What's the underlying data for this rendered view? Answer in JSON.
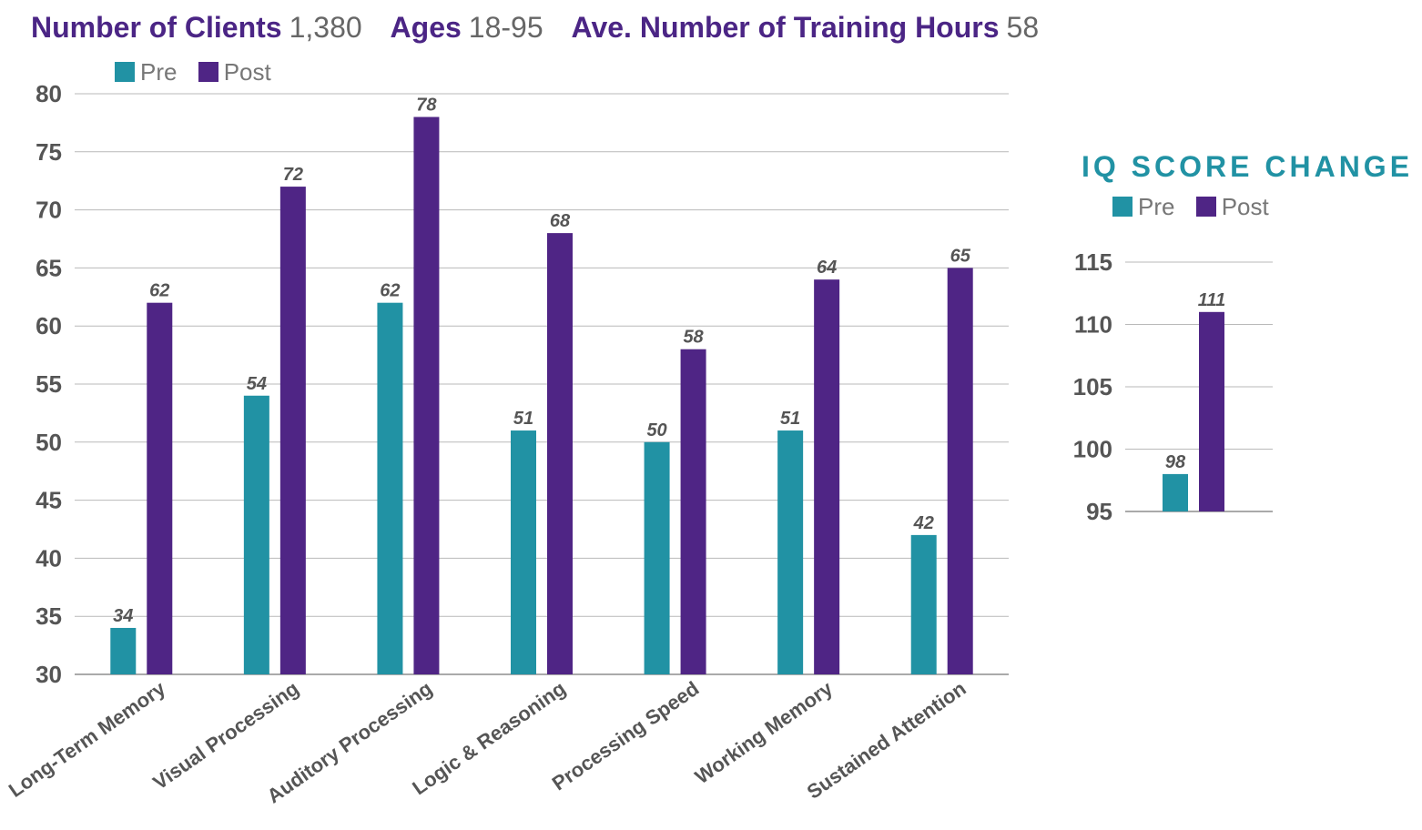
{
  "stats": [
    {
      "label": "Number of Clients",
      "value": "1,380"
    },
    {
      "label": "Ages",
      "value": "18-95"
    },
    {
      "label": "Ave. Number of Training Hours",
      "value": "58"
    }
  ],
  "colors": {
    "pre": "#2192a4",
    "post": "#4f2585",
    "grid": "#b9b9b9",
    "axis": "#555555"
  },
  "chart_data": [
    {
      "type": "bar",
      "title": "",
      "legend": [
        "Pre",
        "Post"
      ],
      "legend_position": "top-left",
      "categories": [
        "Long-Term Memory",
        "Visual Processing",
        "Auditory Processing",
        "Logic & Reasoning",
        "Processing Speed",
        "Working Memory",
        "Sustained Attention"
      ],
      "series": [
        {
          "name": "Pre",
          "values": [
            34,
            54,
            62,
            51,
            50,
            51,
            42
          ]
        },
        {
          "name": "Post",
          "values": [
            62,
            72,
            78,
            68,
            58,
            64,
            65
          ]
        }
      ],
      "ylim": [
        30,
        80
      ],
      "yticks": [
        30,
        35,
        40,
        45,
        50,
        55,
        60,
        65,
        70,
        75,
        80
      ],
      "grid": true
    },
    {
      "type": "bar",
      "title": "IQ SCORE CHANGE",
      "legend": [
        "Pre",
        "Post"
      ],
      "categories": [
        ""
      ],
      "series": [
        {
          "name": "Pre",
          "values": [
            98
          ]
        },
        {
          "name": "Post",
          "values": [
            111
          ]
        }
      ],
      "ylim": [
        95,
        115
      ],
      "yticks": [
        95,
        100,
        105,
        110,
        115
      ],
      "grid": true
    }
  ]
}
